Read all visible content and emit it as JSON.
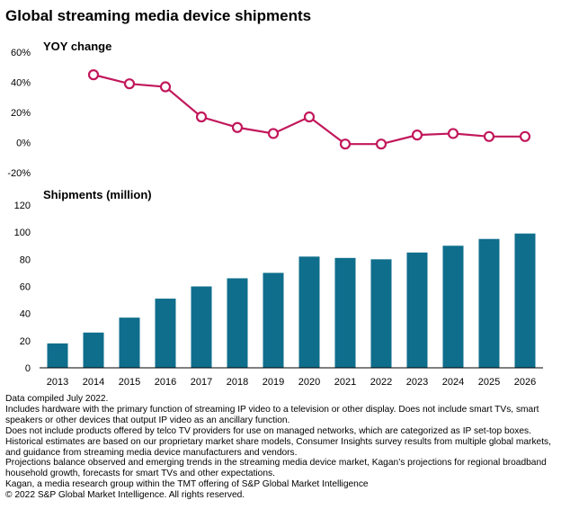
{
  "title": "Global streaming media device shipments",
  "colors": {
    "line": "#c2185b",
    "bar": "#0f6e8c",
    "axis": "#000000"
  },
  "chart_data": [
    {
      "type": "line",
      "title": "YOY change",
      "x": [
        "2014",
        "2015",
        "2016",
        "2017",
        "2018",
        "2019",
        "2020",
        "2021",
        "2022",
        "2023",
        "2024",
        "2025",
        "2026"
      ],
      "values": [
        45,
        39,
        37,
        17,
        10,
        6,
        17,
        -1,
        -1,
        5,
        6,
        4,
        4
      ],
      "ylim": [
        -20,
        60
      ],
      "ytick_labels": [
        "60%",
        "40%",
        "20%",
        "0%",
        "-20%"
      ],
      "yticks": [
        60,
        40,
        20,
        0,
        -20
      ],
      "grid": false
    },
    {
      "type": "bar",
      "title": "Shipments (million)",
      "categories": [
        "2013",
        "2014",
        "2015",
        "2016",
        "2017",
        "2018",
        "2019",
        "2020",
        "2021",
        "2022",
        "2023",
        "2024",
        "2025",
        "2026"
      ],
      "values": [
        18,
        26,
        37,
        51,
        60,
        66,
        70,
        82,
        81,
        80,
        85,
        90,
        95,
        99
      ],
      "ylim": [
        0,
        120
      ],
      "yticks": [
        0,
        20,
        40,
        60,
        80,
        100,
        120
      ],
      "ytick_labels": [
        "0",
        "20",
        "40",
        "60",
        "80",
        "100",
        "120"
      ],
      "grid": false
    }
  ],
  "notes": [
    "Data compiled July 2022.",
    "Includes hardware with the primary function of streaming IP video to a television or other display. Does not include smart TVs, smart speakers or other devices that output IP video as an ancillary function.",
    "Does not include products offered by telco TV providers for use on managed networks, which are categorized as IP set-top boxes.",
    "Historical estimates are based on our proprietary market share models, Consumer Insights survey results from multiple global markets, and guidance from streaming media device manufacturers and vendors.",
    "Projections balance observed and emerging trends in the streaming media device market, Kagan’s projections for regional broadband household growth, forecasts for smart TVs and other expectations.",
    "Kagan, a media research group within the TMT offering of S&P Global Market Intelligence",
    "© 2022 S&P Global Market Intelligence. All rights reserved."
  ]
}
